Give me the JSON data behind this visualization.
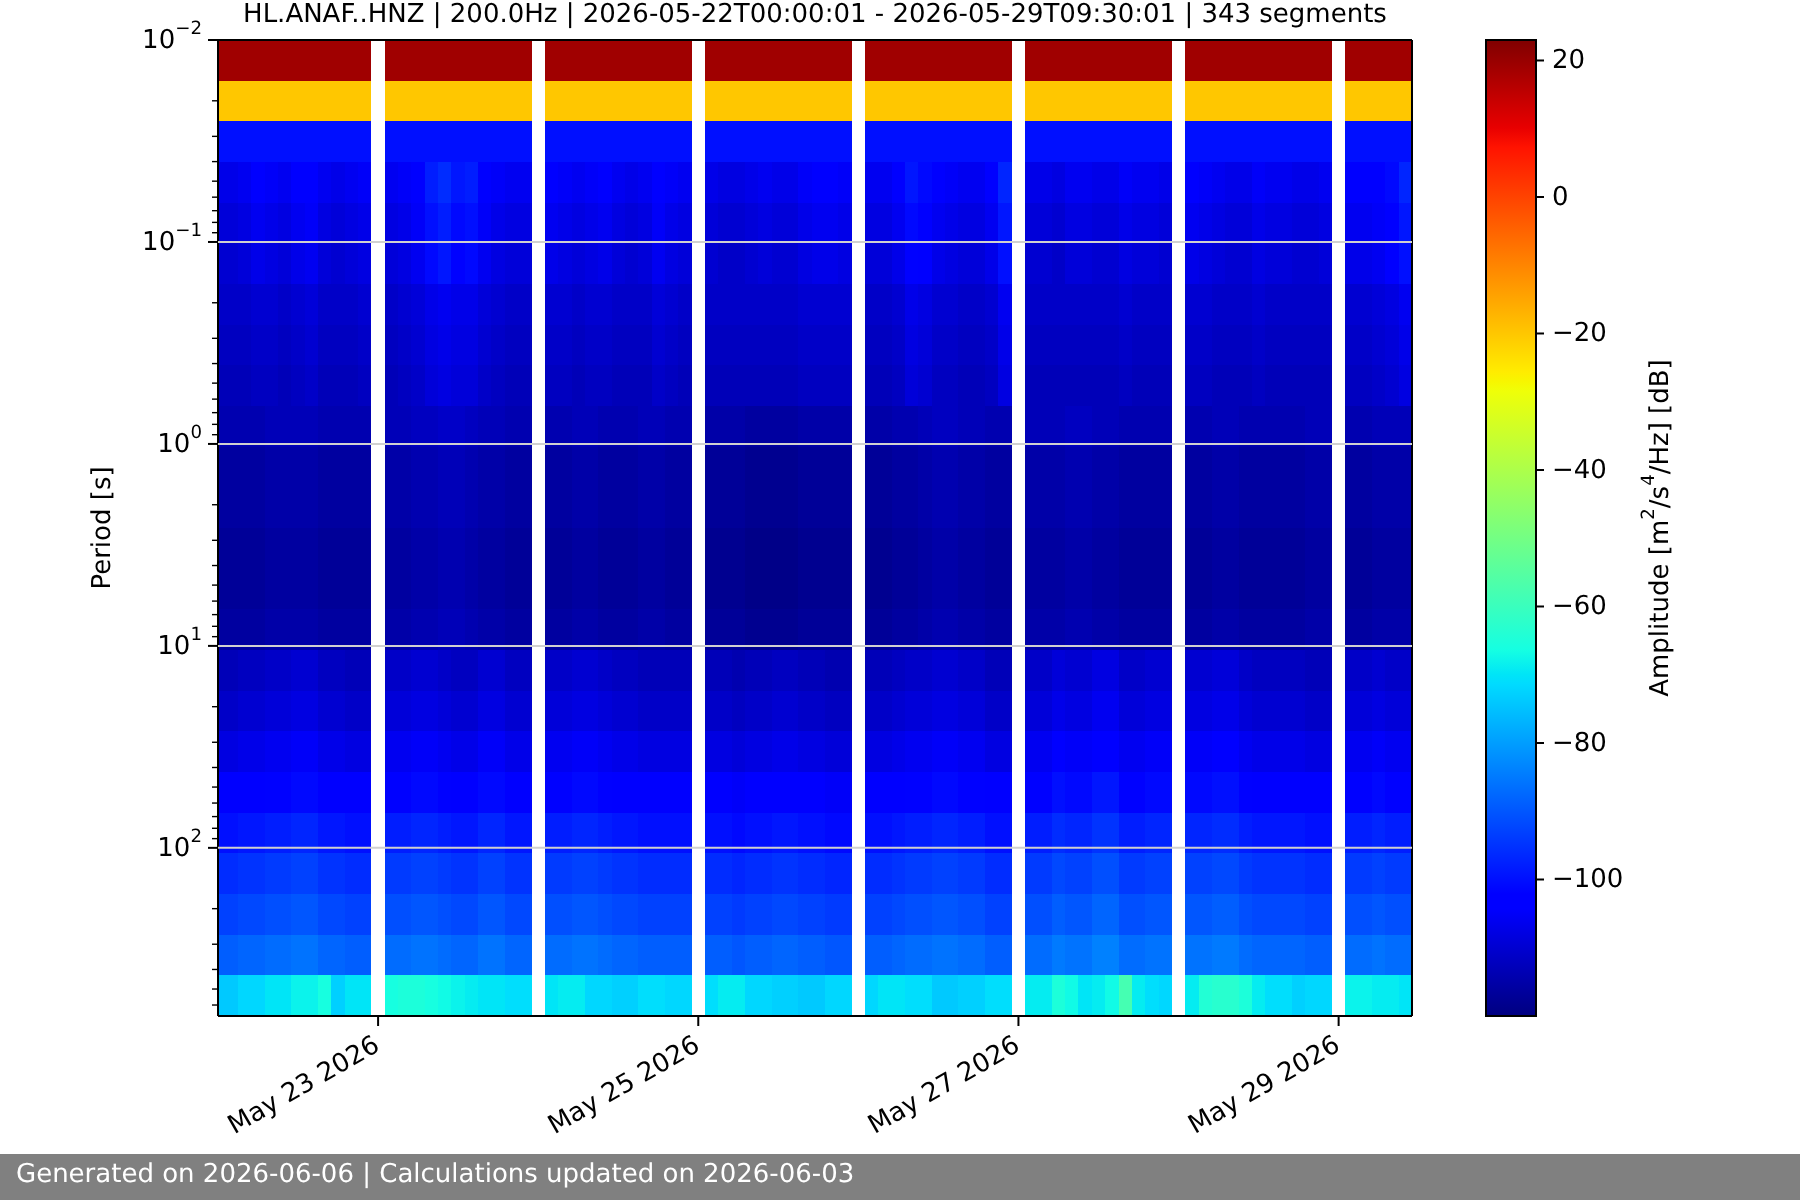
{
  "chart_data": {
    "type": "heatmap",
    "title": "HL.ANAF..HNZ | 200.0Hz | 2026-05-22T00:00:01 - 2026-05-29T09:30:01 | 343 segments",
    "ylabel": "Period [s]",
    "clabel": "Amplitude [m$^{2}$/s$^{4}$/Hz] [dB]",
    "annotations": [
      "Generated on 2026-06-06 | Calculations updated on 2026-06-03"
    ],
    "x": [
      "2026-05-22T00:00",
      "2026-05-22T02:00",
      "2026-05-22T04:00",
      "2026-05-22T06:00",
      "2026-05-22T08:00",
      "2026-05-22T10:00",
      "2026-05-22T12:00",
      "2026-05-22T14:00",
      "2026-05-22T16:00",
      "2026-05-22T18:00",
      "2026-05-22T20:00",
      "2026-05-22T22:00",
      "2026-05-23T00:00",
      "2026-05-23T02:00",
      "2026-05-23T04:00",
      "2026-05-23T06:00",
      "2026-05-23T08:00",
      "2026-05-23T10:00",
      "2026-05-23T12:00",
      "2026-05-23T14:00",
      "2026-05-23T16:00",
      "2026-05-23T18:00",
      "2026-05-23T20:00",
      "2026-05-23T22:00",
      "2026-05-24T00:00",
      "2026-05-24T02:00",
      "2026-05-24T04:00",
      "2026-05-24T06:00",
      "2026-05-24T08:00",
      "2026-05-24T10:00",
      "2026-05-24T12:00",
      "2026-05-24T14:00",
      "2026-05-24T16:00",
      "2026-05-24T18:00",
      "2026-05-24T20:00",
      "2026-05-24T22:00",
      "2026-05-25T00:00",
      "2026-05-25T02:00",
      "2026-05-25T04:00",
      "2026-05-25T06:00",
      "2026-05-25T08:00",
      "2026-05-25T10:00",
      "2026-05-25T12:00",
      "2026-05-25T14:00",
      "2026-05-25T16:00",
      "2026-05-25T18:00",
      "2026-05-25T20:00",
      "2026-05-25T22:00",
      "2026-05-26T00:00",
      "2026-05-26T02:00",
      "2026-05-26T04:00",
      "2026-05-26T06:00",
      "2026-05-26T08:00",
      "2026-05-26T10:00",
      "2026-05-26T12:00",
      "2026-05-26T14:00",
      "2026-05-26T16:00",
      "2026-05-26T18:00",
      "2026-05-26T20:00",
      "2026-05-26T22:00",
      "2026-05-27T00:00",
      "2026-05-27T02:00",
      "2026-05-27T04:00",
      "2026-05-27T06:00",
      "2026-05-27T08:00",
      "2026-05-27T10:00",
      "2026-05-27T12:00",
      "2026-05-27T14:00",
      "2026-05-27T16:00",
      "2026-05-27T18:00",
      "2026-05-27T20:00",
      "2026-05-27T22:00",
      "2026-05-28T00:00",
      "2026-05-28T02:00",
      "2026-05-28T04:00",
      "2026-05-28T06:00",
      "2026-05-28T08:00",
      "2026-05-28T10:00",
      "2026-05-28T12:00",
      "2026-05-28T14:00",
      "2026-05-28T16:00",
      "2026-05-28T18:00",
      "2026-05-28T20:00",
      "2026-05-28T22:00",
      "2026-05-29T00:00",
      "2026-05-29T02:00",
      "2026-05-29T04:00",
      "2026-05-29T06:00",
      "2026-05-29T08:00",
      "2026-05-29T10:00"
    ],
    "cells": [
      [
        19,
        19,
        19,
        19,
        19,
        19,
        19,
        19,
        19,
        19,
        19,
        19,
        null,
        19,
        19,
        19,
        19,
        19,
        19,
        19,
        19,
        19,
        19,
        19,
        null,
        19,
        19,
        19,
        19,
        19,
        19,
        19,
        19,
        19,
        19,
        19,
        null,
        19,
        19,
        19,
        19,
        19,
        19,
        19,
        19,
        19,
        19,
        19,
        null,
        19,
        19,
        19,
        19,
        19,
        19,
        19,
        19,
        19,
        19,
        19,
        null,
        19,
        19,
        19,
        19,
        19,
        19,
        19,
        19,
        19,
        19,
        19,
        null,
        19,
        19,
        19,
        19,
        19,
        19,
        19,
        19,
        19,
        19,
        19,
        null,
        19,
        19,
        19,
        19,
        19
      ],
      [
        -20,
        -20,
        -20,
        -20,
        -20,
        -20,
        -20,
        -20,
        -20,
        -20,
        -20,
        -20,
        null,
        -20,
        -20,
        -20,
        -20,
        -20,
        -20,
        -20,
        -20,
        -20,
        -20,
        -20,
        null,
        -20,
        -20,
        -20,
        -20,
        -20,
        -20,
        -20,
        -20,
        -20,
        -20,
        -20,
        null,
        -20,
        -20,
        -20,
        -20,
        -20,
        -20,
        -20,
        -20,
        -20,
        -20,
        -20,
        null,
        -20,
        -20,
        -20,
        -20,
        -20,
        -20,
        -20,
        -20,
        -20,
        -20,
        -20,
        null,
        -20,
        -20,
        -20,
        -20,
        -20,
        -20,
        -20,
        -20,
        -20,
        -20,
        -20,
        null,
        -20,
        -20,
        -20,
        -20,
        -20,
        -20,
        -20,
        -20,
        -20,
        -20,
        -20,
        null,
        -20,
        -20,
        -20,
        -20,
        -20
      ],
      [
        -100,
        -100,
        -100,
        -100,
        -100,
        -100,
        -100,
        -100,
        -100,
        -100,
        -100,
        -100,
        null,
        -100,
        -100,
        -100,
        -100,
        -100,
        -100,
        -100,
        -100,
        -100,
        -100,
        -100,
        null,
        -100,
        -100,
        -100,
        -100,
        -100,
        -100,
        -100,
        -100,
        -100,
        -100,
        -100,
        null,
        -100,
        -100,
        -100,
        -100,
        -100,
        -100,
        -100,
        -100,
        -100,
        -100,
        -100,
        null,
        -100,
        -100,
        -100,
        -100,
        -100,
        -100,
        -100,
        -100,
        -100,
        -100,
        -100,
        null,
        -100,
        -100,
        -100,
        -100,
        -100,
        -100,
        -100,
        -100,
        -100,
        -100,
        -100,
        null,
        -100,
        -100,
        -100,
        -100,
        -100,
        -100,
        -100,
        -100,
        -100,
        -100,
        -100,
        null,
        -100,
        -100,
        -100,
        -100,
        -100
      ],
      [
        -107,
        -107,
        -106,
        -104,
        -105,
        -106,
        -104,
        -103,
        -106,
        -107,
        -106,
        -105,
        null,
        -106,
        -105,
        -103,
        -98,
        -96,
        -99,
        -98,
        -103,
        -105,
        -106,
        -106,
        null,
        -104,
        -105,
        -106,
        -105,
        -104,
        -106,
        -107,
        -106,
        -103,
        -105,
        -106,
        null,
        -107,
        -108,
        -108,
        -107,
        -106,
        -107,
        -107,
        -105,
        -104,
        -104,
        -105,
        null,
        -106,
        -106,
        -104,
        -99,
        -101,
        -104,
        -105,
        -106,
        -106,
        -104,
        -97,
        null,
        -107,
        -107,
        -108,
        -106,
        -106,
        -107,
        -107,
        -105,
        -106,
        -106,
        -107,
        null,
        -104,
        -105,
        -106,
        -107,
        -107,
        -105,
        -106,
        -106,
        -107,
        -107,
        -106,
        null,
        -104,
        -104,
        -103,
        -101,
        -97
      ],
      [
        -109,
        -109,
        -108,
        -106,
        -107,
        -108,
        -106,
        -105,
        -108,
        -109,
        -108,
        -107,
        null,
        -108,
        -107,
        -105,
        -100,
        -98,
        -101,
        -100,
        -105,
        -107,
        -108,
        -108,
        null,
        -106,
        -107,
        -108,
        -107,
        -106,
        -108,
        -109,
        -108,
        -105,
        -107,
        -108,
        null,
        -109,
        -110,
        -110,
        -109,
        -108,
        -109,
        -109,
        -107,
        -106,
        -106,
        -107,
        null,
        -108,
        -108,
        -106,
        -101,
        -103,
        -106,
        -107,
        -108,
        -108,
        -106,
        -99,
        null,
        -109,
        -109,
        -110,
        -108,
        -108,
        -109,
        -109,
        -107,
        -108,
        -108,
        -109,
        null,
        -106,
        -107,
        -108,
        -109,
        -109,
        -107,
        -108,
        -108,
        -109,
        -109,
        -108,
        null,
        -106,
        -106,
        -105,
        -103,
        -99
      ],
      [
        -110,
        -110,
        -109,
        -107,
        -108,
        -109,
        -107,
        -106,
        -109,
        -110,
        -109,
        -108,
        null,
        -109,
        -108,
        -106,
        -101,
        -99,
        -102,
        -101,
        -106,
        -108,
        -109,
        -109,
        null,
        -107,
        -108,
        -109,
        -108,
        -107,
        -109,
        -110,
        -109,
        -106,
        -108,
        -109,
        null,
        -110,
        -111,
        -111,
        -110,
        -109,
        -110,
        -110,
        -108,
        -107,
        -107,
        -108,
        null,
        -109,
        -109,
        -107,
        -102,
        -104,
        -107,
        -108,
        -109,
        -109,
        -107,
        -100,
        null,
        -110,
        -110,
        -111,
        -109,
        -109,
        -110,
        -110,
        -108,
        -109,
        -109,
        -110,
        null,
        -107,
        -108,
        -109,
        -110,
        -110,
        -108,
        -109,
        -109,
        -110,
        -110,
        -109,
        null,
        -107,
        -107,
        -106,
        -104,
        -100
      ],
      [
        -111,
        -111,
        -111,
        -110,
        -110,
        -111,
        -110,
        -109,
        -111,
        -111,
        -111,
        -110,
        null,
        -111,
        -110,
        -109,
        -107,
        -106,
        -107,
        -107,
        -109,
        -110,
        -111,
        -111,
        null,
        -110,
        -110,
        -111,
        -110,
        -110,
        -111,
        -111,
        -111,
        -109,
        -110,
        -111,
        null,
        -111,
        -111,
        -111,
        -111,
        -111,
        -111,
        -111,
        -110,
        -110,
        -110,
        -110,
        null,
        -111,
        -111,
        -110,
        -107,
        -108,
        -110,
        -110,
        -111,
        -111,
        -110,
        -106,
        null,
        -111,
        -111,
        -111,
        -111,
        -111,
        -111,
        -111,
        -110,
        -111,
        -111,
        -111,
        null,
        -110,
        -110,
        -111,
        -111,
        -111,
        -110,
        -111,
        -111,
        -111,
        -111,
        -111,
        null,
        -110,
        -110,
        -109,
        -108,
        -106
      ],
      [
        -112,
        -112,
        -112,
        -111,
        -111,
        -112,
        -111,
        -110,
        -112,
        -112,
        -112,
        -111,
        null,
        -112,
        -111,
        -110,
        -108,
        -107,
        -108,
        -108,
        -110,
        -111,
        -112,
        -112,
        null,
        -111,
        -111,
        -112,
        -111,
        -111,
        -112,
        -112,
        -112,
        -110,
        -111,
        -112,
        null,
        -112,
        -112,
        -112,
        -112,
        -112,
        -112,
        -112,
        -111,
        -111,
        -111,
        -111,
        null,
        -112,
        -112,
        -111,
        -108,
        -109,
        -111,
        -111,
        -112,
        -112,
        -111,
        -107,
        null,
        -112,
        -112,
        -112,
        -112,
        -112,
        -112,
        -112,
        -111,
        -112,
        -112,
        -112,
        null,
        -111,
        -111,
        -112,
        -112,
        -112,
        -111,
        -112,
        -112,
        -112,
        -112,
        -112,
        null,
        -111,
        -111,
        -110,
        -109,
        -107
      ],
      [
        -113,
        -113,
        -113,
        -112,
        -112,
        -113,
        -112,
        -111,
        -113,
        -113,
        -113,
        -112,
        null,
        -113,
        -112,
        -111,
        -109,
        -108,
        -109,
        -109,
        -111,
        -112,
        -113,
        -113,
        null,
        -112,
        -112,
        -113,
        -112,
        -112,
        -113,
        -113,
        -113,
        -111,
        -112,
        -113,
        null,
        -113,
        -113,
        -113,
        -113,
        -113,
        -113,
        -113,
        -112,
        -112,
        -112,
        -112,
        null,
        -113,
        -113,
        -112,
        -109,
        -110,
        -112,
        -112,
        -113,
        -113,
        -112,
        -108,
        null,
        -113,
        -113,
        -113,
        -113,
        -113,
        -113,
        -113,
        -112,
        -113,
        -113,
        -113,
        null,
        -112,
        -112,
        -113,
        -113,
        -113,
        -112,
        -113,
        -113,
        -113,
        -113,
        -113,
        null,
        -112,
        -112,
        -111,
        -110,
        -108
      ],
      [
        -114,
        -114,
        -114,
        -114,
        -113,
        -113,
        -113,
        -113,
        -114,
        -114,
        -114,
        -114,
        null,
        -113,
        -113,
        -112,
        -112,
        -111,
        -111,
        -112,
        -113,
        -113,
        -114,
        -114,
        null,
        -114,
        -114,
        -113,
        -113,
        -114,
        -114,
        -114,
        -113,
        -113,
        -114,
        -114,
        null,
        -115,
        -115,
        -115,
        -116,
        -116,
        -116,
        -116,
        -115,
        -115,
        -115,
        -115,
        null,
        -115,
        -115,
        -114,
        -114,
        -113,
        -112,
        -112,
        -113,
        -113,
        -114,
        -114,
        null,
        -113,
        -113,
        -113,
        -112,
        -112,
        -113,
        -113,
        -114,
        -114,
        -114,
        -114,
        null,
        -114,
        -114,
        -113,
        -113,
        -114,
        -114,
        -114,
        -114,
        -114,
        -113,
        -113,
        null,
        -114,
        -114,
        -113,
        -113,
        -113
      ],
      [
        -116,
        -116,
        -116,
        -116,
        -115,
        -115,
        -115,
        -115,
        -116,
        -116,
        -116,
        -116,
        null,
        -115,
        -115,
        -114,
        -114,
        -113,
        -113,
        -114,
        -115,
        -115,
        -116,
        -116,
        null,
        -116,
        -116,
        -115,
        -115,
        -116,
        -116,
        -116,
        -115,
        -115,
        -116,
        -116,
        null,
        -117,
        -117,
        -117,
        -118,
        -118,
        -118,
        -118,
        -117,
        -117,
        -117,
        -117,
        null,
        -117,
        -117,
        -116,
        -116,
        -115,
        -114,
        -114,
        -115,
        -115,
        -116,
        -116,
        null,
        -115,
        -115,
        -115,
        -114,
        -114,
        -115,
        -115,
        -116,
        -116,
        -116,
        -116,
        null,
        -116,
        -116,
        -115,
        -115,
        -116,
        -116,
        -116,
        -116,
        -116,
        -115,
        -115,
        null,
        -116,
        -116,
        -115,
        -115,
        -115
      ],
      [
        -116,
        -116,
        -116,
        -116,
        -115,
        -115,
        -115,
        -115,
        -116,
        -116,
        -116,
        -116,
        null,
        -115,
        -115,
        -114,
        -114,
        -113,
        -113,
        -114,
        -115,
        -115,
        -116,
        -116,
        null,
        -116,
        -116,
        -115,
        -115,
        -116,
        -116,
        -116,
        -115,
        -115,
        -116,
        -116,
        null,
        -117,
        -117,
        -117,
        -118,
        -118,
        -118,
        -118,
        -117,
        -117,
        -117,
        -117,
        null,
        -117,
        -117,
        -116,
        -116,
        -115,
        -114,
        -114,
        -115,
        -115,
        -116,
        -116,
        null,
        -115,
        -115,
        -115,
        -114,
        -114,
        -115,
        -115,
        -116,
        -116,
        -116,
        -116,
        null,
        -116,
        -116,
        -115,
        -115,
        -116,
        -116,
        -116,
        -116,
        -116,
        -115,
        -115,
        null,
        -116,
        -116,
        -115,
        -115,
        -115
      ],
      [
        -117,
        -117,
        -117,
        -117,
        -116,
        -116,
        -116,
        -116,
        -117,
        -117,
        -117,
        -117,
        null,
        -116,
        -116,
        -115,
        -115,
        -114,
        -114,
        -115,
        -116,
        -116,
        -117,
        -117,
        null,
        -117,
        -117,
        -116,
        -116,
        -117,
        -117,
        -117,
        -116,
        -116,
        -117,
        -117,
        null,
        -118,
        -118,
        -118,
        -119,
        -119,
        -119,
        -119,
        -118,
        -118,
        -118,
        -118,
        null,
        -118,
        -118,
        -117,
        -117,
        -116,
        -115,
        -115,
        -116,
        -116,
        -117,
        -117,
        null,
        -116,
        -116,
        -116,
        -115,
        -115,
        -116,
        -116,
        -117,
        -117,
        -117,
        -117,
        null,
        -117,
        -117,
        -116,
        -116,
        -117,
        -117,
        -117,
        -117,
        -117,
        -116,
        -116,
        null,
        -117,
        -117,
        -116,
        -116,
        -116
      ],
      [
        -117,
        -117,
        -117,
        -117,
        -116,
        -116,
        -116,
        -116,
        -117,
        -117,
        -117,
        -117,
        null,
        -116,
        -116,
        -115,
        -115,
        -114,
        -114,
        -115,
        -116,
        -116,
        -117,
        -117,
        null,
        -117,
        -117,
        -116,
        -116,
        -117,
        -117,
        -117,
        -116,
        -116,
        -117,
        -117,
        null,
        -118,
        -118,
        -118,
        -119,
        -119,
        -119,
        -119,
        -118,
        -118,
        -118,
        -118,
        null,
        -118,
        -118,
        -117,
        -117,
        -116,
        -115,
        -115,
        -116,
        -116,
        -117,
        -117,
        null,
        -116,
        -116,
        -116,
        -115,
        -115,
        -116,
        -116,
        -117,
        -117,
        -117,
        -117,
        null,
        -117,
        -117,
        -116,
        -116,
        -117,
        -117,
        -117,
        -117,
        -117,
        -116,
        -116,
        null,
        -117,
        -117,
        -116,
        -116,
        -116
      ],
      [
        -116,
        -116,
        -116,
        -116,
        -115,
        -115,
        -115,
        -115,
        -116,
        -116,
        -116,
        -116,
        null,
        -115,
        -115,
        -114,
        -114,
        -113,
        -113,
        -114,
        -115,
        -115,
        -116,
        -116,
        null,
        -116,
        -116,
        -115,
        -115,
        -116,
        -116,
        -116,
        -115,
        -115,
        -116,
        -116,
        null,
        -117,
        -117,
        -117,
        -118,
        -118,
        -118,
        -118,
        -117,
        -117,
        -117,
        -117,
        null,
        -117,
        -117,
        -116,
        -116,
        -115,
        -114,
        -114,
        -115,
        -115,
        -116,
        -116,
        null,
        -115,
        -115,
        -115,
        -114,
        -114,
        -115,
        -115,
        -116,
        -116,
        -116,
        -116,
        null,
        -116,
        -116,
        -115,
        -115,
        -116,
        -116,
        -116,
        -116,
        -116,
        -115,
        -115,
        null,
        -116,
        -116,
        -115,
        -115,
        -115
      ],
      [
        -113,
        -113,
        -112,
        -112,
        -111,
        -111,
        -110,
        -110,
        -112,
        -112,
        -113,
        -113,
        null,
        -111,
        -111,
        -110,
        -110,
        -111,
        -112,
        -112,
        -110,
        -110,
        -112,
        -112,
        null,
        -111,
        -111,
        -110,
        -110,
        -111,
        -112,
        -112,
        -113,
        -113,
        -113,
        -113,
        null,
        -113,
        -113,
        -114,
        -113,
        -113,
        -112,
        -112,
        -113,
        -113,
        -114,
        -114,
        null,
        -113,
        -113,
        -112,
        -111,
        -111,
        -110,
        -110,
        -111,
        -111,
        -113,
        -113,
        null,
        -111,
        -111,
        -109,
        -110,
        -110,
        -108,
        -108,
        -111,
        -111,
        -110,
        -110,
        null,
        -110,
        -110,
        -109,
        -109,
        -111,
        -112,
        -112,
        -112,
        -112,
        -113,
        -113,
        null,
        -111,
        -111,
        -110,
        -111,
        -111
      ],
      [
        -111,
        -111,
        -110,
        -110,
        -109,
        -109,
        -108,
        -108,
        -110,
        -110,
        -111,
        -111,
        null,
        -109,
        -109,
        -108,
        -108,
        -109,
        -110,
        -110,
        -108,
        -108,
        -110,
        -110,
        null,
        -109,
        -109,
        -108,
        -108,
        -109,
        -110,
        -110,
        -111,
        -111,
        -111,
        -111,
        null,
        -111,
        -111,
        -112,
        -111,
        -111,
        -110,
        -110,
        -111,
        -111,
        -112,
        -112,
        null,
        -111,
        -111,
        -110,
        -109,
        -109,
        -108,
        -108,
        -109,
        -109,
        -111,
        -111,
        null,
        -109,
        -109,
        -107,
        -108,
        -108,
        -106,
        -106,
        -109,
        -109,
        -108,
        -108,
        null,
        -108,
        -108,
        -107,
        -107,
        -109,
        -110,
        -110,
        -110,
        -110,
        -111,
        -111,
        null,
        -109,
        -109,
        -108,
        -109,
        -109
      ],
      [
        -108,
        -108,
        -107,
        -107,
        -106,
        -106,
        -105,
        -105,
        -107,
        -107,
        -108,
        -108,
        null,
        -106,
        -106,
        -105,
        -105,
        -106,
        -107,
        -107,
        -105,
        -105,
        -107,
        -107,
        null,
        -106,
        -106,
        -105,
        -105,
        -106,
        -107,
        -107,
        -108,
        -108,
        -108,
        -108,
        null,
        -108,
        -108,
        -109,
        -108,
        -108,
        -107,
        -107,
        -108,
        -108,
        -109,
        -109,
        null,
        -108,
        -108,
        -107,
        -106,
        -106,
        -105,
        -105,
        -106,
        -106,
        -108,
        -108,
        null,
        -106,
        -106,
        -104,
        -105,
        -105,
        -103,
        -103,
        -106,
        -106,
        -105,
        -105,
        null,
        -105,
        -105,
        -104,
        -104,
        -106,
        -107,
        -107,
        -107,
        -107,
        -108,
        -108,
        null,
        -106,
        -106,
        -105,
        -106,
        -106
      ],
      [
        -104,
        -104,
        -103,
        -103,
        -102,
        -102,
        -101,
        -101,
        -103,
        -103,
        -104,
        -104,
        null,
        -102,
        -102,
        -101,
        -101,
        -102,
        -103,
        -103,
        -101,
        -101,
        -103,
        -103,
        null,
        -102,
        -102,
        -101,
        -101,
        -102,
        -103,
        -103,
        -104,
        -104,
        -104,
        -104,
        null,
        -104,
        -104,
        -105,
        -104,
        -104,
        -103,
        -103,
        -104,
        -104,
        -105,
        -105,
        null,
        -104,
        -104,
        -103,
        -102,
        -102,
        -101,
        -101,
        -102,
        -102,
        -104,
        -104,
        null,
        -102,
        -102,
        -100,
        -101,
        -101,
        -99,
        -99,
        -102,
        -102,
        -101,
        -101,
        null,
        -101,
        -101,
        -100,
        -100,
        -102,
        -103,
        -103,
        -103,
        -103,
        -104,
        -104,
        null,
        -102,
        -102,
        -101,
        -102,
        -102
      ],
      [
        -100,
        -100,
        -99,
        -99,
        -98,
        -98,
        -97,
        -97,
        -99,
        -99,
        -100,
        -100,
        null,
        -98,
        -98,
        -97,
        -97,
        -98,
        -99,
        -99,
        -97,
        -97,
        -99,
        -99,
        null,
        -98,
        -98,
        -97,
        -97,
        -98,
        -99,
        -99,
        -100,
        -100,
        -100,
        -100,
        null,
        -100,
        -100,
        -101,
        -100,
        -100,
        -99,
        -99,
        -100,
        -100,
        -101,
        -101,
        null,
        -100,
        -100,
        -99,
        -98,
        -98,
        -97,
        -97,
        -98,
        -98,
        -100,
        -100,
        null,
        -98,
        -98,
        -96,
        -97,
        -97,
        -95,
        -95,
        -98,
        -98,
        -97,
        -97,
        null,
        -97,
        -97,
        -96,
        -96,
        -98,
        -99,
        -99,
        -99,
        -99,
        -100,
        -100,
        null,
        -98,
        -98,
        -97,
        -98,
        -98
      ],
      [
        -96,
        -96,
        -95,
        -95,
        -94,
        -94,
        -93,
        -93,
        -95,
        -95,
        -96,
        -96,
        null,
        -94,
        -94,
        -93,
        -93,
        -94,
        -95,
        -95,
        -93,
        -93,
        -95,
        -95,
        null,
        -94,
        -94,
        -93,
        -93,
        -94,
        -95,
        -95,
        -96,
        -96,
        -96,
        -96,
        null,
        -96,
        -96,
        -97,
        -96,
        -96,
        -95,
        -95,
        -96,
        -96,
        -97,
        -97,
        null,
        -96,
        -96,
        -95,
        -94,
        -94,
        -93,
        -93,
        -94,
        -94,
        -96,
        -96,
        null,
        -94,
        -94,
        -92,
        -93,
        -93,
        -91,
        -91,
        -94,
        -94,
        -93,
        -93,
        null,
        -93,
        -93,
        -92,
        -92,
        -94,
        -95,
        -95,
        -95,
        -95,
        -96,
        -96,
        null,
        -94,
        -94,
        -93,
        -94,
        -94
      ],
      [
        -93,
        -93,
        -92,
        -92,
        -91,
        -91,
        -90,
        -90,
        -92,
        -92,
        -93,
        -93,
        null,
        -91,
        -91,
        -90,
        -90,
        -91,
        -92,
        -92,
        -90,
        -90,
        -92,
        -92,
        null,
        -91,
        -91,
        -90,
        -90,
        -91,
        -92,
        -92,
        -93,
        -93,
        -93,
        -93,
        null,
        -93,
        -93,
        -94,
        -93,
        -93,
        -92,
        -92,
        -93,
        -93,
        -94,
        -94,
        null,
        -93,
        -93,
        -92,
        -91,
        -91,
        -90,
        -90,
        -91,
        -91,
        -93,
        -93,
        null,
        -91,
        -91,
        -89,
        -90,
        -90,
        -88,
        -88,
        -91,
        -91,
        -90,
        -90,
        null,
        -90,
        -90,
        -89,
        -89,
        -91,
        -92,
        -92,
        -92,
        -92,
        -93,
        -93,
        null,
        -91,
        -91,
        -90,
        -91,
        -91
      ],
      [
        -89,
        -89,
        -88,
        -88,
        -87,
        -87,
        -86,
        -86,
        -88,
        -88,
        -89,
        -89,
        null,
        -87,
        -87,
        -86,
        -86,
        -87,
        -88,
        -88,
        -86,
        -86,
        -88,
        -88,
        null,
        -87,
        -87,
        -86,
        -86,
        -87,
        -88,
        -88,
        -89,
        -89,
        -89,
        -89,
        null,
        -89,
        -89,
        -90,
        -89,
        -89,
        -88,
        -88,
        -89,
        -89,
        -90,
        -90,
        null,
        -89,
        -89,
        -88,
        -87,
        -87,
        -86,
        -86,
        -87,
        -87,
        -89,
        -89,
        null,
        -87,
        -87,
        -85,
        -86,
        -86,
        -84,
        -84,
        -87,
        -87,
        -86,
        -86,
        null,
        -86,
        -86,
        -85,
        -85,
        -87,
        -88,
        -88,
        -88,
        -88,
        -89,
        -89,
        null,
        -87,
        -87,
        -86,
        -87,
        -87
      ],
      [
        -74,
        -74,
        -72,
        -72,
        -70,
        -70,
        -68,
        -68,
        -66,
        -73,
        -70,
        -70,
        null,
        -66,
        -65,
        -65,
        -66,
        -67,
        -68,
        -69,
        -70,
        -70,
        -71,
        -71,
        null,
        -70,
        -69,
        -69,
        -72,
        -72,
        -73,
        -73,
        -71,
        -71,
        -72,
        -72,
        null,
        -71,
        -69,
        -69,
        -72,
        -72,
        -73,
        -73,
        -74,
        -74,
        -72,
        -72,
        null,
        -72,
        -70,
        -70,
        -71,
        -71,
        -74,
        -74,
        -73,
        -73,
        -71,
        -71,
        null,
        -69,
        -69,
        -65,
        -67,
        -70,
        -69,
        -67,
        -58,
        -69,
        -71,
        -72,
        null,
        -69,
        -64,
        -63,
        -63,
        -65,
        -69,
        -71,
        -71,
        -73,
        -72,
        -72,
        null,
        -68,
        -68,
        -69,
        -69,
        -70
      ]
    ],
    "clim": [
      -120,
      23
    ],
    "cticks": [
      {
        "value": -100,
        "label": "−100"
      },
      {
        "value": -80,
        "label": "−80"
      },
      {
        "value": -60,
        "label": "−60"
      },
      {
        "value": -40,
        "label": "−40"
      },
      {
        "value": -20,
        "label": "−20"
      },
      0,
      20
    ],
    "xlim": [
      "2026-05-22T00:00",
      "2026-05-29T11:00"
    ],
    "xticks": [
      {
        "value": "2026-05-23",
        "label": "May 23 2026"
      },
      {
        "value": "2026-05-25",
        "label": "May 25 2026"
      },
      {
        "value": "2026-05-27",
        "label": "May 27 2026"
      },
      {
        "value": "2026-05-29",
        "label": "May 29 2026"
      }
    ],
    "ylim": [
      680,
      0.01
    ],
    "yticks": [
      {
        "value": 0.01,
        "label": "10$^{−2}$"
      },
      {
        "value": 0.02,
        "label": null
      },
      {
        "value": 0.03,
        "label": null
      },
      {
        "value": 0.04,
        "label": null
      },
      {
        "value": 0.05,
        "label": null
      },
      {
        "value": 0.06,
        "label": null
      },
      {
        "value": 0.07,
        "label": null
      },
      {
        "value": 0.08,
        "label": null
      },
      {
        "value": 0.09,
        "label": null
      },
      {
        "value": 0.1,
        "label": "10$^{−1}$"
      },
      {
        "value": 0.2,
        "label": null
      },
      {
        "value": 0.3,
        "label": null
      },
      {
        "value": 0.4,
        "label": null
      },
      {
        "value": 0.5,
        "label": null
      },
      {
        "value": 0.6,
        "label": null
      },
      {
        "value": 0.7,
        "label": null
      },
      {
        "value": 0.8,
        "label": null
      },
      {
        "value": 0.9,
        "label": null
      },
      {
        "value": 1,
        "label": "10$^{0}$"
      },
      {
        "value": 2,
        "label": null
      },
      {
        "value": 3,
        "label": null
      },
      {
        "value": 4,
        "label": null
      },
      {
        "value": 5,
        "label": null
      },
      {
        "value": 6,
        "label": null
      },
      {
        "value": 7,
        "label": null
      },
      {
        "value": 8,
        "label": null
      },
      {
        "value": 9,
        "label": null
      },
      {
        "value": 10,
        "label": "10$^{1}$"
      },
      {
        "value": 20,
        "label": null
      },
      {
        "value": 30,
        "label": null
      },
      {
        "value": 40,
        "label": null
      },
      {
        "value": 50,
        "label": null
      },
      {
        "value": 60,
        "label": null
      },
      {
        "value": 70,
        "label": null
      },
      {
        "value": 80,
        "label": null
      },
      {
        "value": 90,
        "label": null
      },
      {
        "value": 100,
        "label": "10$^{2}$"
      },
      {
        "value": 200,
        "label": null
      },
      {
        "value": 300,
        "label": null
      },
      {
        "value": 400,
        "label": null
      },
      {
        "value": 500,
        "label": null
      },
      {
        "value": 600,
        "label": null
      }
    ],
    "log": "y",
    "grid": "y"
  }
}
